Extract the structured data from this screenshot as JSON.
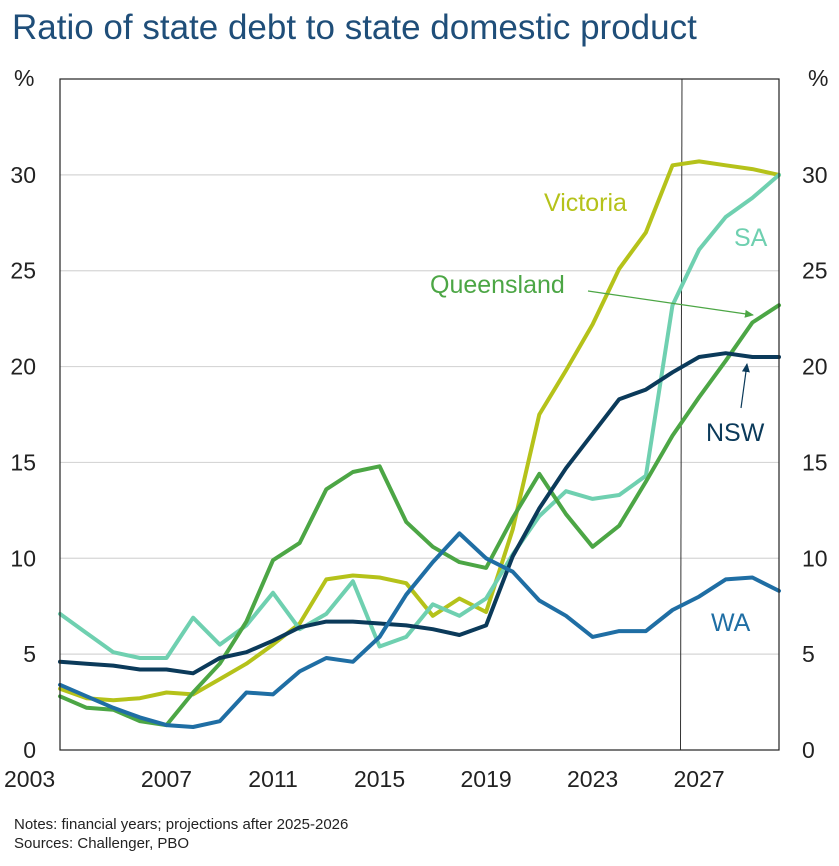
{
  "title": "Ratio of state debt to state domestic product",
  "notes": {
    "line1": "Notes: financial years; projections after 2025-2026",
    "line2": "Sources: Challenger, PBO"
  },
  "chart_data": {
    "type": "line",
    "title": "Ratio of state debt to state domestic product",
    "y_unit_left": "%",
    "y_unit_right": "%",
    "xlim": [
      2003,
      2030
    ],
    "ylim": [
      0,
      35
    ],
    "x_ticks": [
      2003,
      2007,
      2011,
      2015,
      2019,
      2023,
      2027
    ],
    "y_ticks": [
      0,
      5,
      10,
      15,
      20,
      25,
      30
    ],
    "grid": "horizontal",
    "projection_start": 2026,
    "x": [
      2003,
      2004,
      2005,
      2006,
      2007,
      2008,
      2009,
      2010,
      2011,
      2012,
      2013,
      2014,
      2015,
      2016,
      2017,
      2018,
      2019,
      2020,
      2021,
      2022,
      2023,
      2024,
      2025,
      2026,
      2027,
      2028,
      2029,
      2030
    ],
    "series": [
      {
        "name": "Victoria",
        "color": "#b5c21a",
        "values": [
          3.2,
          2.7,
          2.6,
          2.7,
          3.0,
          2.9,
          3.7,
          4.5,
          5.5,
          6.6,
          8.9,
          9.1,
          9.0,
          8.7,
          7.0,
          7.9,
          7.2,
          11.5,
          17.5,
          19.8,
          22.2,
          25.1,
          27.0,
          30.5,
          30.7,
          30.5,
          30.3,
          30.0
        ]
      },
      {
        "name": "SA",
        "color": "#6fd0b0",
        "values": [
          7.1,
          6.1,
          5.1,
          4.8,
          4.8,
          6.9,
          5.5,
          6.5,
          8.2,
          6.3,
          7.1,
          8.8,
          5.4,
          5.9,
          7.6,
          7.0,
          7.9,
          10.2,
          12.2,
          13.5,
          13.1,
          13.3,
          14.3,
          23.2,
          26.1,
          27.8,
          28.8,
          30.0
        ]
      },
      {
        "name": "Queensland",
        "color": "#4ca645",
        "values": [
          2.8,
          2.2,
          2.1,
          1.5,
          1.3,
          3.0,
          4.5,
          6.7,
          9.9,
          10.8,
          13.6,
          14.5,
          14.8,
          11.9,
          10.6,
          9.8,
          9.5,
          12.1,
          14.4,
          12.3,
          10.6,
          11.7,
          14.0,
          16.4,
          18.4,
          20.3,
          22.3,
          23.2
        ]
      },
      {
        "name": "NSW",
        "color": "#0b3a5a",
        "values": [
          4.6,
          4.5,
          4.4,
          4.2,
          4.2,
          4.0,
          4.8,
          5.1,
          5.7,
          6.4,
          6.7,
          6.7,
          6.6,
          6.5,
          6.3,
          6.0,
          6.5,
          10.1,
          12.6,
          14.7,
          16.5,
          18.3,
          18.8,
          19.7,
          20.5,
          20.7,
          20.5,
          20.5
        ]
      },
      {
        "name": "WA",
        "color": "#1f6ea4",
        "values": [
          3.4,
          2.8,
          2.2,
          1.7,
          1.3,
          1.2,
          1.5,
          3.0,
          2.9,
          4.1,
          4.8,
          4.6,
          5.9,
          8.1,
          9.8,
          11.3,
          10.0,
          9.3,
          7.8,
          7.0,
          5.9,
          6.2,
          6.2,
          7.3,
          8.0,
          8.9,
          9.0,
          8.3
        ]
      }
    ],
    "annotations": [
      {
        "text": "Victoria",
        "series": "Victoria"
      },
      {
        "text": "SA",
        "series": "SA"
      },
      {
        "text": "Queensland",
        "series": "Queensland",
        "arrow": true
      },
      {
        "text": "NSW",
        "series": "NSW",
        "arrow": true
      },
      {
        "text": "WA",
        "series": "WA"
      }
    ]
  }
}
